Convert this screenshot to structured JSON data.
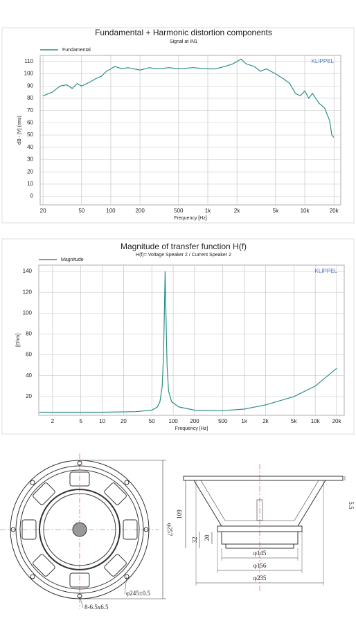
{
  "chart_data": [
    {
      "type": "line",
      "title": "Fundamental + Harmonic distortion components",
      "subtitle": "Signal at IN1",
      "xlabel": "Frequency [Hz]",
      "ylabel": "dB - [V] (rms)",
      "watermark": "KLIPPEL",
      "legend": "upper left",
      "grid": true,
      "xscale": "log",
      "xlim": [
        18.7,
        23500
      ],
      "ylim": [
        -7,
        115
      ],
      "xticks": [
        20,
        50,
        100,
        200,
        500,
        {
          "value": 1000,
          "label": "1k"
        },
        {
          "value": 2000,
          "label": "2k"
        },
        {
          "value": 5000,
          "label": "5k"
        },
        {
          "value": 10000,
          "label": "10k"
        },
        {
          "value": 20000,
          "label": "20k"
        }
      ],
      "yticks": [
        0,
        10,
        20,
        30,
        40,
        50,
        60,
        70,
        80,
        90,
        100,
        110
      ],
      "x": [
        20,
        25,
        30,
        35,
        40,
        45,
        50,
        60,
        70,
        80,
        90,
        100,
        110,
        130,
        150,
        200,
        250,
        300,
        400,
        500,
        700,
        1000,
        1200,
        1500,
        1800,
        2000,
        2200,
        2500,
        3000,
        3500,
        4000,
        5000,
        6000,
        7000,
        8000,
        9000,
        10000,
        11000,
        12000,
        14000,
        16000,
        18000,
        19000,
        20000
      ],
      "series": [
        {
          "name": "Fundamental",
          "color": "#2a8f88",
          "values": [
            82,
            85,
            90,
            91,
            88,
            92,
            90,
            93,
            96,
            98,
            102,
            104,
            106,
            104,
            105,
            103,
            105,
            104,
            105,
            104,
            105,
            104,
            104,
            106,
            108,
            110,
            112,
            108,
            106,
            102,
            104,
            100,
            96,
            92,
            84,
            82,
            86,
            80,
            84,
            76,
            72,
            62,
            50,
            48
          ]
        }
      ]
    },
    {
      "type": "line",
      "title": "Magnitude of transfer function H(f)",
      "subtitle": "H(f)= Voltage Speaker 2 / Current Speaker 2",
      "xlabel": "Frequency [Hz]",
      "ylabel": "[Ohm]",
      "watermark": "KLIPPEL",
      "legend": "upper left",
      "grid": true,
      "xscale": "log",
      "xlim": [
        1.28,
        25600
      ],
      "ylim": [
        2,
        146
      ],
      "xticks": [
        2,
        5,
        10,
        20,
        50,
        100,
        200,
        500,
        {
          "value": 1000,
          "label": "1k"
        },
        {
          "value": 2000,
          "label": "2k"
        },
        {
          "value": 5000,
          "label": "5k"
        },
        {
          "value": 10000,
          "label": "10k"
        },
        {
          "value": 20000,
          "label": "20k"
        }
      ],
      "yticks": [
        20,
        40,
        60,
        80,
        100,
        120,
        140
      ],
      "x": [
        1.3,
        10,
        30,
        50,
        60,
        65,
        70,
        73,
        75,
        77,
        79,
        82,
        86,
        95,
        120,
        200,
        500,
        1000,
        2000,
        5000,
        10000,
        20000
      ],
      "series": [
        {
          "name": "Magnitude",
          "color": "#2a8f88",
          "values": [
            5,
            5,
            5.5,
            7,
            10,
            15,
            30,
            60,
            100,
            140,
            100,
            50,
            25,
            15,
            10,
            7,
            6.5,
            8,
            12,
            20,
            30,
            47
          ]
        }
      ]
    }
  ],
  "drawing": {
    "front": {
      "outer_dia": "φ257",
      "bolt_circle": "φ245±0.5",
      "holes": "8-6.5x6.5"
    },
    "side": {
      "depth": "109",
      "flange": "5.5",
      "magnet_h": "32",
      "plate_h": "20",
      "d1": "φ145",
      "d2": "φ156",
      "d3": "φ235"
    }
  }
}
